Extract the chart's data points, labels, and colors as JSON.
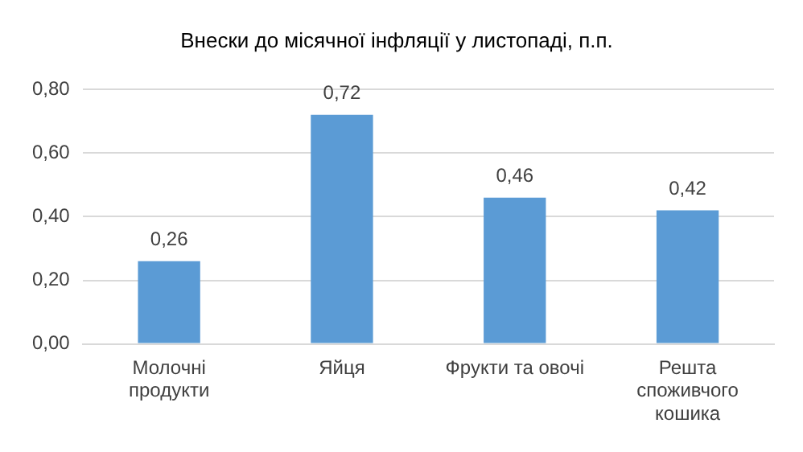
{
  "chart_data": {
    "type": "bar",
    "title": "Внески до місячної інфляції у листопаді, п.п.",
    "categories": [
      "Молочні продукти",
      "Яйця",
      "Фрукти та овочі",
      "Решта споживчого кошика"
    ],
    "values": [
      0.26,
      0.72,
      0.46,
      0.42
    ],
    "color": "#5b9bd5",
    "value_labels": [
      "0,26",
      "0,72",
      "0,46",
      "0,42"
    ],
    "ylim": [
      0,
      0.8
    ],
    "yticks": [
      {
        "value": 0,
        "label": "0,00"
      },
      {
        "value": 0.2,
        "label": "0,20"
      },
      {
        "value": 0.4,
        "label": "0,40"
      },
      {
        "value": 0.6,
        "label": "0,60"
      },
      {
        "value": 0.8,
        "label": "0,80"
      }
    ],
    "grid": "y",
    "legend": false
  }
}
